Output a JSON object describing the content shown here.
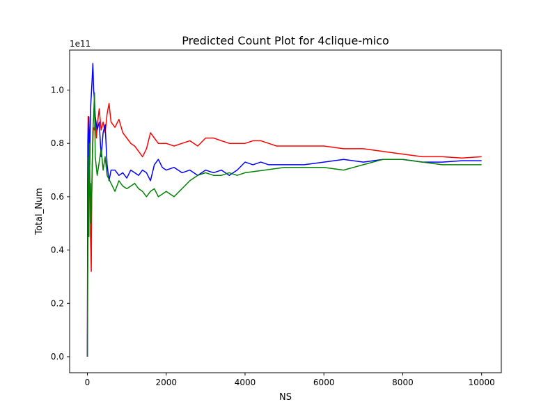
{
  "chart_data": {
    "type": "line",
    "title": "Predicted Count Plot for 4clique-mico",
    "xlabel": "NS",
    "ylabel": "Total_Num",
    "y_multiplier_label": "1e11",
    "xlim": [
      -450,
      10500
    ],
    "ylim": [
      -0.06,
      1.15
    ],
    "x_ticks": [
      0,
      2000,
      4000,
      6000,
      8000,
      10000
    ],
    "x_tick_labels": [
      "0",
      "2000",
      "4000",
      "6000",
      "8000",
      "10000"
    ],
    "y_ticks": [
      0.0,
      0.2,
      0.4,
      0.6,
      0.8,
      1.0
    ],
    "y_tick_labels": [
      "0.0",
      "0.2",
      "0.4",
      "0.6",
      "0.8",
      "1.0"
    ],
    "grid": false,
    "legend": "none",
    "series": [
      {
        "color": "#ff0000",
        "x": [
          0,
          10,
          20,
          30,
          40,
          50,
          60,
          80,
          100,
          110,
          130,
          150,
          180,
          200,
          230,
          260,
          300,
          350,
          400,
          450,
          500,
          550,
          600,
          700,
          800,
          900,
          1000,
          1100,
          1200,
          1300,
          1400,
          1500,
          1600,
          1700,
          1800,
          2000,
          2200,
          2400,
          2600,
          2800,
          3000,
          3200,
          3400,
          3600,
          3800,
          4000,
          4200,
          4400,
          4600,
          4800,
          5000,
          5500,
          6000,
          6500,
          7000,
          7500,
          8000,
          8500,
          9000,
          9500,
          10000
        ],
        "y": [
          0.0,
          0.8,
          0.9,
          0.7,
          0.55,
          0.82,
          0.7,
          0.45,
          0.32,
          0.6,
          0.75,
          0.86,
          0.85,
          0.9,
          0.82,
          0.88,
          0.93,
          0.85,
          0.88,
          0.84,
          0.91,
          0.95,
          0.88,
          0.86,
          0.89,
          0.84,
          0.82,
          0.8,
          0.79,
          0.77,
          0.75,
          0.78,
          0.84,
          0.82,
          0.8,
          0.8,
          0.79,
          0.8,
          0.81,
          0.79,
          0.82,
          0.82,
          0.81,
          0.8,
          0.8,
          0.8,
          0.81,
          0.81,
          0.8,
          0.79,
          0.79,
          0.79,
          0.79,
          0.78,
          0.78,
          0.77,
          0.76,
          0.75,
          0.75,
          0.745,
          0.75
        ]
      },
      {
        "color": "#0000ff",
        "x": [
          0,
          10,
          20,
          40,
          60,
          80,
          100,
          120,
          140,
          160,
          180,
          200,
          250,
          300,
          350,
          400,
          450,
          500,
          550,
          600,
          700,
          800,
          900,
          1000,
          1100,
          1200,
          1300,
          1400,
          1500,
          1600,
          1700,
          1800,
          1900,
          2000,
          2200,
          2400,
          2600,
          2800,
          3000,
          3200,
          3400,
          3600,
          3800,
          4000,
          4200,
          4400,
          4600,
          4800,
          5000,
          5500,
          6000,
          6500,
          7000,
          7500,
          8000,
          8500,
          9000,
          9500,
          10000
        ],
        "y": [
          0.0,
          0.64,
          0.82,
          0.9,
          0.72,
          0.93,
          0.98,
          1.04,
          1.1,
          1.0,
          0.96,
          0.9,
          0.85,
          0.88,
          0.75,
          0.84,
          0.87,
          0.72,
          0.66,
          0.7,
          0.7,
          0.68,
          0.69,
          0.67,
          0.7,
          0.69,
          0.68,
          0.7,
          0.69,
          0.66,
          0.72,
          0.74,
          0.71,
          0.7,
          0.71,
          0.69,
          0.7,
          0.68,
          0.7,
          0.69,
          0.7,
          0.68,
          0.7,
          0.73,
          0.72,
          0.73,
          0.72,
          0.72,
          0.72,
          0.72,
          0.73,
          0.74,
          0.73,
          0.74,
          0.74,
          0.73,
          0.73,
          0.735,
          0.735
        ]
      },
      {
        "color": "#008000",
        "x": [
          0,
          10,
          20,
          30,
          40,
          50,
          60,
          80,
          100,
          120,
          140,
          160,
          180,
          200,
          250,
          300,
          350,
          400,
          450,
          500,
          600,
          700,
          800,
          900,
          1000,
          1100,
          1200,
          1300,
          1400,
          1500,
          1600,
          1700,
          1800,
          1900,
          2000,
          2200,
          2400,
          2600,
          2800,
          3000,
          3200,
          3400,
          3600,
          3800,
          4000,
          4500,
          5000,
          5500,
          6000,
          6500,
          7000,
          7500,
          8000,
          8500,
          9000,
          9500,
          10000
        ],
        "y": [
          0.0,
          0.3,
          0.6,
          0.75,
          0.45,
          0.8,
          0.6,
          0.65,
          0.5,
          0.7,
          0.85,
          0.9,
          0.99,
          0.75,
          0.68,
          0.73,
          0.78,
          0.7,
          0.75,
          0.68,
          0.65,
          0.62,
          0.66,
          0.64,
          0.63,
          0.64,
          0.65,
          0.63,
          0.62,
          0.6,
          0.62,
          0.63,
          0.6,
          0.61,
          0.62,
          0.6,
          0.63,
          0.66,
          0.68,
          0.69,
          0.68,
          0.68,
          0.69,
          0.68,
          0.69,
          0.7,
          0.71,
          0.71,
          0.71,
          0.7,
          0.72,
          0.74,
          0.74,
          0.73,
          0.72,
          0.72,
          0.72
        ]
      }
    ]
  }
}
